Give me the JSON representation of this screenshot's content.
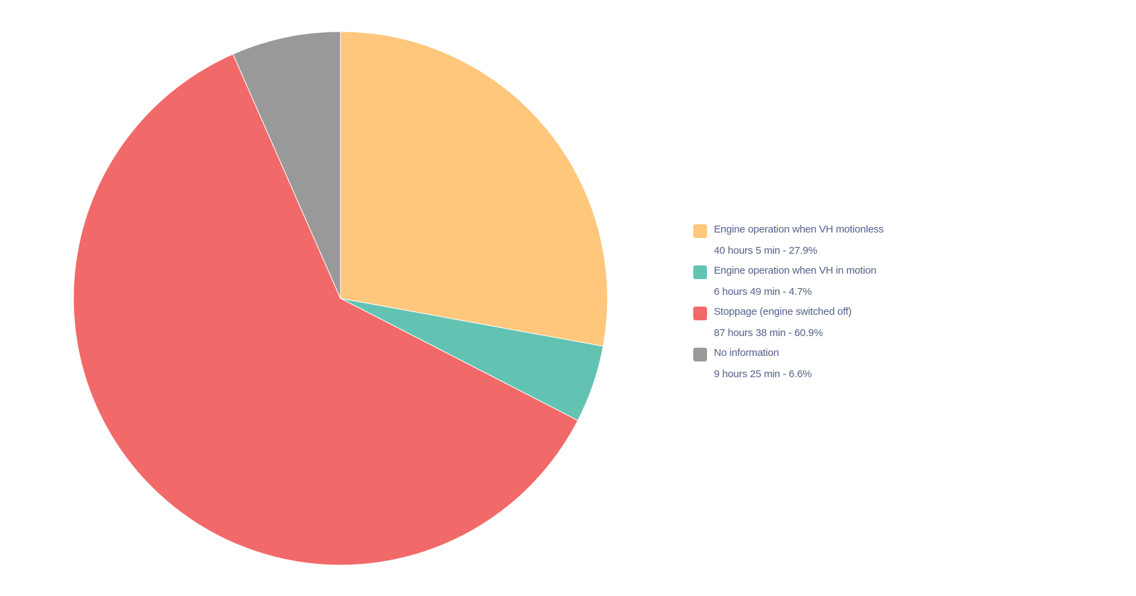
{
  "chart_data": {
    "type": "pie",
    "title": "",
    "start_angle": "top",
    "direction": "clockwise",
    "slices": [
      {
        "label": "Engine operation when VH motionless",
        "detail": "40 hours 5 min - 27.9%",
        "value": 27.9,
        "color": "#fec77b"
      },
      {
        "label": "Engine operation when VH in motion",
        "detail": "6 hours 49 min - 4.7%",
        "value": 4.7,
        "color": "#63c3b3"
      },
      {
        "label": "Stoppage (engine switched off)",
        "detail": "87 hours 38 min - 60.9%",
        "value": 60.9,
        "color": "#f26969"
      },
      {
        "label": "No information",
        "detail": "9 hours 25 min - 6.6%",
        "value": 6.6,
        "color": "#999999"
      }
    ],
    "legend_position": "right"
  }
}
